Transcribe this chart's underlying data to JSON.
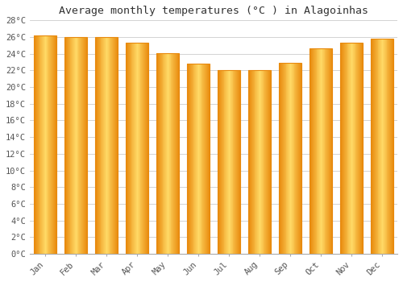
{
  "title": "Average monthly temperatures (°C ) in Alagoinhas",
  "months": [
    "Jan",
    "Feb",
    "Mar",
    "Apr",
    "May",
    "Jun",
    "Jul",
    "Aug",
    "Sep",
    "Oct",
    "Nov",
    "Dec"
  ],
  "values": [
    26.2,
    26.0,
    26.0,
    25.3,
    24.1,
    22.8,
    22.0,
    22.0,
    22.9,
    24.6,
    25.3,
    25.8
  ],
  "bar_color_center": "#FFD966",
  "bar_color_edge": "#E8890C",
  "background_color": "#FFFFFF",
  "plot_bg_color": "#FFFFFF",
  "grid_color": "#CCCCCC",
  "ylim": [
    0,
    28
  ],
  "ytick_step": 2,
  "title_fontsize": 9.5,
  "tick_fontsize": 7.5,
  "bar_width": 0.72
}
